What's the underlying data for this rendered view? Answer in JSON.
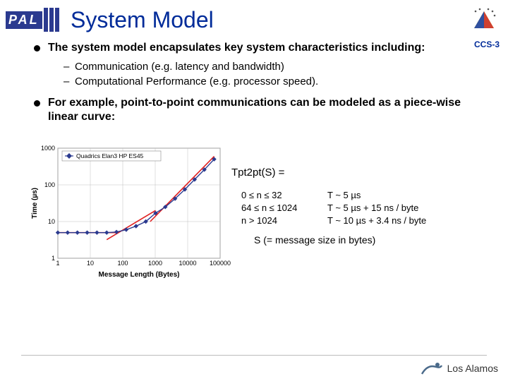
{
  "header": {
    "pal": "PAL",
    "title": "System Model",
    "ccs": "CCS-3"
  },
  "bullets": {
    "b1": "The system model encapsulates key system characteristics including:",
    "b1a": "Communication (e.g. latency and bandwidth)",
    "b1b": "Computational Performance (e.g. processor speed).",
    "b2": "For example, point-to-point communications can be modeled as a piece-wise linear curve:"
  },
  "chart": {
    "type": "line-scatter-loglog",
    "legend_label": "Quadrics Elan3 HP ES45",
    "xlabel": "Message Length (Bytes)",
    "ylabel": "Time (µs)",
    "xlim": [
      1,
      100000
    ],
    "ylim": [
      1,
      1000
    ],
    "x_ticks": [
      1,
      10,
      100,
      1000,
      10000,
      100000
    ],
    "y_ticks": [
      1,
      10,
      100,
      1000
    ],
    "points_x": [
      1,
      2,
      4,
      8,
      16,
      32,
      64,
      128,
      256,
      512,
      1024,
      2048,
      4096,
      8192,
      16384,
      32768,
      65536
    ],
    "points_y": [
      5,
      5,
      5,
      5,
      5,
      5,
      5.2,
      6,
      7.5,
      10,
      17,
      25,
      42,
      75,
      140,
      260,
      500
    ],
    "series_color": "#2b3a8f",
    "marker_size": 3.2,
    "fit_lines": [
      {
        "x1": 1,
        "y1": 5,
        "x2": 64,
        "y2": 5,
        "color": "#e02020"
      },
      {
        "x1": 32,
        "y1": 3.2,
        "x2": 1024,
        "y2": 20,
        "color": "#e02020"
      },
      {
        "x1": 700,
        "y1": 10,
        "x2": 65536,
        "y2": 600,
        "color": "#e02020"
      }
    ],
    "background_color": "#ffffff",
    "grid_color": "#bfbfbf",
    "axis_fontsize": 9,
    "label_fontsize": 10,
    "legend_bg": "#ffffff",
    "legend_border": "#888888"
  },
  "formula": {
    "title": "Tpt2pt(S) =",
    "rows": [
      {
        "cond": "0 ≤ n ≤ 32",
        "val": "T ~  5 µs"
      },
      {
        "cond": "64 ≤ n ≤ 1024",
        "val": "T ~  5 µs + 15 ns / byte"
      },
      {
        "cond": "n > 1024",
        "val": "T ~  10 µs + 3.4 ns / byte"
      }
    ],
    "sline": "S (= message size in bytes)"
  },
  "footer": {
    "lab": "Los Alamos"
  }
}
